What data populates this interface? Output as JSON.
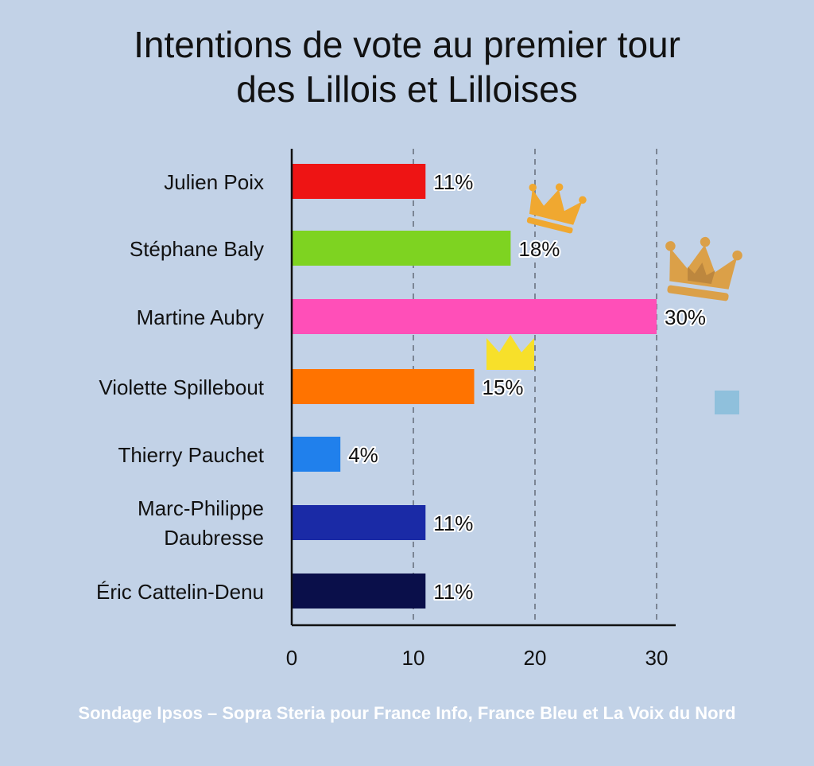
{
  "chart_data": {
    "type": "bar",
    "orientation": "horizontal",
    "title_lines": [
      "Intentions de vote au premier tour",
      "des Lillois et Lilloises"
    ],
    "categories": [
      "Julien Poix",
      "Stéphane Baly",
      "Martine Aubry",
      "Violette Spillebout",
      "Thierry Pauchet",
      "Marc-Philippe Daubresse",
      "Éric Cattelin-Denu"
    ],
    "values": [
      11,
      18,
      30,
      15,
      4,
      11,
      11
    ],
    "value_labels": [
      "11%",
      "18%",
      "30%",
      "15%",
      "4%",
      "11%",
      "11%"
    ],
    "bar_colors": [
      "#ee1414",
      "#7ed321",
      "#ff4fb8",
      "#ff7300",
      "#2080ec",
      "#1a2aa6",
      "#0a0f4a"
    ],
    "xlim": [
      0,
      31
    ],
    "xticks": [
      0,
      10,
      20,
      30
    ],
    "grid": "vertical dashed at 10, 20, 30",
    "xlabel": "",
    "ylabel": "",
    "decorations": [
      {
        "name": "crown-icon",
        "color": "#f0a830",
        "near": "Stéphane Baly"
      },
      {
        "name": "crown-icon",
        "color": "#dba048",
        "near": "Martine Aubry"
      },
      {
        "name": "crown-icon",
        "color": "#f7e02a",
        "near": "Violette Spillebout"
      },
      {
        "name": "square-icon",
        "color": "#8fc0dc",
        "near": "right margin"
      }
    ],
    "source": "Sondage Ipsos – Sopra Steria pour France Info, France Bleu et La Voix du Nord"
  }
}
